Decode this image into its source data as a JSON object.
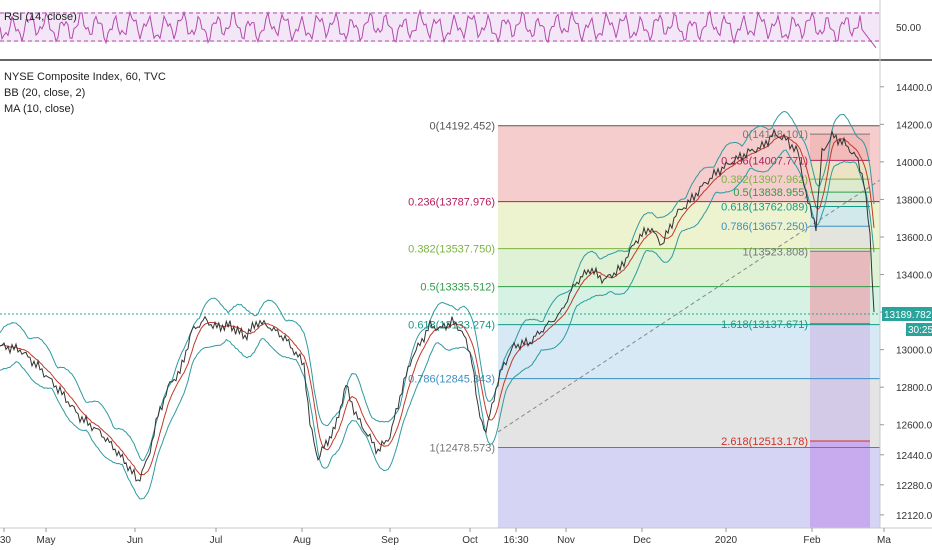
{
  "chart_data": {
    "type": "line",
    "rsi_panel": {
      "legend": "RSI (14, close)",
      "tick_labels": [
        "50.00"
      ],
      "band_color": "#f0e2f5",
      "line_color": "#b34aab"
    },
    "main_panel": {
      "legend": [
        "NYSE Composite Index, 60, TVC",
        "BB (20, close, 2)",
        "MA (10, close)"
      ],
      "y_ticks": [
        "14400.000",
        "14200.000",
        "14000.000",
        "13800.000",
        "13600.000",
        "13400.000",
        "13200.000",
        "13000.000",
        "12800.000",
        "12600.000",
        "12440.000",
        "12280.000",
        "12120.000"
      ],
      "y_tick_values": [
        14400,
        14200,
        14000,
        13800,
        13600,
        13400,
        13200,
        13000,
        12800,
        12600,
        12440,
        12280,
        12120
      ],
      "ylim": [
        12050,
        14500
      ],
      "x_ticks": [
        ":30",
        "May",
        "Jun",
        "Jul",
        "Aug",
        "Sep",
        "Oct",
        "16:30",
        "Nov",
        "Dec",
        "2020",
        "Feb",
        "Ma"
      ],
      "current_price": "13189.782",
      "countdown": "30:25",
      "fib_big": {
        "levels": [
          {
            "label": "0(14192.452)",
            "value": 14192.452,
            "color": "#555555"
          },
          {
            "label": "0.236(13787.976)",
            "value": 13787.976,
            "color": "#b71c5c"
          },
          {
            "label": "0.382(13537.750)",
            "value": 13537.75,
            "color": "#7cb342"
          },
          {
            "label": "0.5(13335.512)",
            "value": 13335.512,
            "color": "#2e9d4a"
          },
          {
            "label": "0.618(13133.274)",
            "value": 13133.274,
            "color": "#159a8a"
          },
          {
            "label": "0.786(12845.343)",
            "value": 12845.343,
            "color": "#3d8fc4"
          },
          {
            "label": "1(12478.573)",
            "value": 12478.573,
            "color": "#777777"
          }
        ]
      },
      "fib_small": {
        "levels": [
          {
            "label": "0(14148.101)",
            "value": 14148.101,
            "color": "#777777"
          },
          {
            "label": "0.236(14007.771)",
            "value": 14007.771,
            "color": "#b71c5c"
          },
          {
            "label": "0.382(13907.962)",
            "value": 13907.962,
            "color": "#7cb342"
          },
          {
            "label": "0.5(13838.955)",
            "value": 13838.955,
            "color": "#2e9d4a"
          },
          {
            "label": "0.618(13762.089)",
            "value": 13762.089,
            "color": "#159a8a"
          },
          {
            "label": "0.786(13657.250)",
            "value": 13657.25,
            "color": "#3d8fc4"
          },
          {
            "label": "1(13523.808)",
            "value": 13523.808,
            "color": "#777777"
          },
          {
            "label": "1.618(13137.671)",
            "value": 13137.671,
            "color": "#159a8a"
          },
          {
            "label": "2.618(12513.178)",
            "value": 12513.178,
            "color": "#d32f2f"
          }
        ]
      },
      "price_path": [
        [
          0,
          13020
        ],
        [
          20,
          13000
        ],
        [
          40,
          12900
        ],
        [
          60,
          12780
        ],
        [
          80,
          12640
        ],
        [
          100,
          12560
        ],
        [
          115,
          12470
        ],
        [
          128,
          12380
        ],
        [
          138,
          12300
        ],
        [
          148,
          12420
        ],
        [
          158,
          12650
        ],
        [
          170,
          12820
        ],
        [
          180,
          12880
        ],
        [
          192,
          13100
        ],
        [
          205,
          13160
        ],
        [
          215,
          13120
        ],
        [
          230,
          13130
        ],
        [
          245,
          13070
        ],
        [
          258,
          13150
        ],
        [
          270,
          13120
        ],
        [
          285,
          13060
        ],
        [
          296,
          12980
        ],
        [
          304,
          12920
        ],
        [
          310,
          12600
        ],
        [
          318,
          12420
        ],
        [
          326,
          12500
        ],
        [
          335,
          12580
        ],
        [
          346,
          12810
        ],
        [
          356,
          12650
        ],
        [
          366,
          12560
        ],
        [
          378,
          12460
        ],
        [
          390,
          12540
        ],
        [
          402,
          12790
        ],
        [
          412,
          12960
        ],
        [
          420,
          13030
        ],
        [
          430,
          13130
        ],
        [
          440,
          13110
        ],
        [
          452,
          13150
        ],
        [
          462,
          13100
        ],
        [
          472,
          12950
        ],
        [
          478,
          12680
        ],
        [
          486,
          12560
        ],
        [
          494,
          12750
        ],
        [
          502,
          12900
        ],
        [
          514,
          13020
        ],
        [
          530,
          13040
        ],
        [
          545,
          13120
        ],
        [
          560,
          13190
        ],
        [
          575,
          13350
        ],
        [
          590,
          13430
        ],
        [
          604,
          13370
        ],
        [
          620,
          13430
        ],
        [
          636,
          13580
        ],
        [
          650,
          13650
        ],
        [
          662,
          13560
        ],
        [
          676,
          13720
        ],
        [
          690,
          13790
        ],
        [
          704,
          13880
        ],
        [
          718,
          13950
        ],
        [
          732,
          14000
        ],
        [
          748,
          14050
        ],
        [
          762,
          14080
        ],
        [
          774,
          14150
        ],
        [
          786,
          14120
        ],
        [
          798,
          14050
        ],
        [
          808,
          13780
        ],
        [
          816,
          13660
        ],
        [
          822,
          14050
        ],
        [
          832,
          14140
        ],
        [
          844,
          14100
        ],
        [
          856,
          14030
        ],
        [
          864,
          13900
        ],
        [
          870,
          13600
        ],
        [
          874,
          13200
        ]
      ]
    },
    "x_tick_positions_hint": "months across ~1 year, 60-minute bars"
  }
}
